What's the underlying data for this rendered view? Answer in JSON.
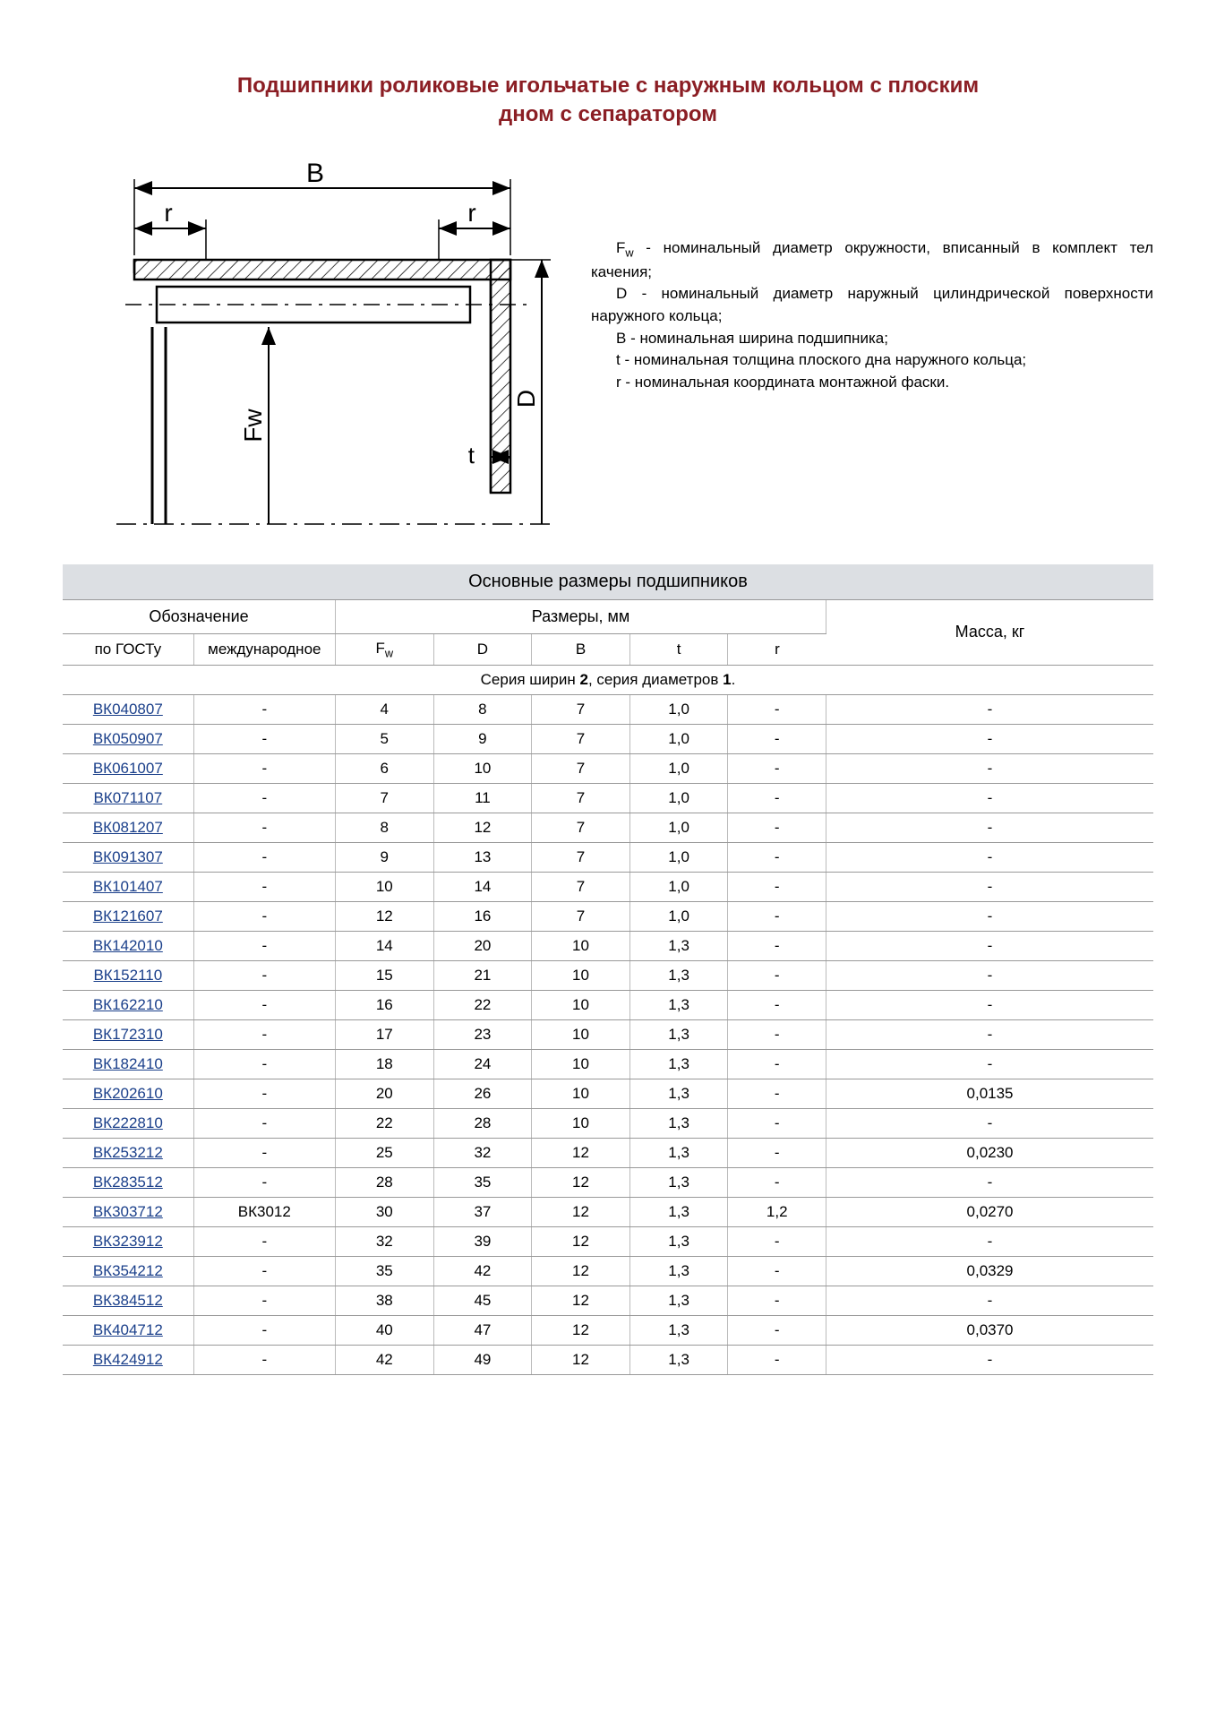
{
  "title_line1": "Подшипники роликовые игольчатые с наружным кольцом с плоским",
  "title_line2": "дном с сепаратором",
  "diagram": {
    "labels": {
      "B": "B",
      "r_left": "r",
      "r_right": "r",
      "Fw": "Fw",
      "D": "D",
      "t": "t"
    },
    "colors": {
      "stroke": "#000000",
      "hatch": "#000000",
      "dash": "#000000",
      "bg": "#ffffff"
    },
    "font_family": "Verdana, sans-serif",
    "label_fontsize": 28
  },
  "definitions": [
    {
      "symbol": "Fw",
      "symbol_html": "F<sub>w</sub>",
      "text": "- номинальный диаметр окружности, вписанный в комплект тел качения;"
    },
    {
      "symbol": "D",
      "symbol_html": "D",
      "text": "- номинальный диаметр наружный цилиндрической поверхности наружного кольца;"
    },
    {
      "symbol": "B",
      "symbol_html": "B",
      "text": "- номинальная ширина подшипника;"
    },
    {
      "symbol": "t",
      "symbol_html": "t",
      "text": "- номинальная толщина плоского дна наружного кольца;"
    },
    {
      "symbol": "r",
      "symbol_html": "r",
      "text": "- номинальная координата монтажной фаски."
    }
  ],
  "table": {
    "caption": "Основные размеры подшипников",
    "header_groups": {
      "designation": "Обозначение",
      "dimensions": "Размеры, мм",
      "mass": "Масса, кг"
    },
    "header_cols": {
      "gost": "по ГОСТу",
      "intl": "международное",
      "Fw": "Fw",
      "D": "D",
      "B": "B",
      "t": "t",
      "r": "r"
    },
    "series_label_prefix": "Серия ширин ",
    "series_bold_1": "2",
    "series_mid": ", серия диаметров ",
    "series_bold_2": "1",
    "series_suffix": ".",
    "col_widths_pct": [
      12,
      13,
      9,
      9,
      9,
      9,
      9,
      30
    ],
    "colors": {
      "caption_bg": "#dcdfe3",
      "border": "#999999",
      "border_light": "#bbbbbb",
      "link": "#1a3f8a"
    },
    "rows": [
      {
        "gost": "ВК040807",
        "intl": "-",
        "Fw": "4",
        "D": "8",
        "B": "7",
        "t": "1,0",
        "r": "-",
        "mass": "-"
      },
      {
        "gost": "ВК050907",
        "intl": "-",
        "Fw": "5",
        "D": "9",
        "B": "7",
        "t": "1,0",
        "r": "-",
        "mass": "-"
      },
      {
        "gost": "ВК061007",
        "intl": "-",
        "Fw": "6",
        "D": "10",
        "B": "7",
        "t": "1,0",
        "r": "-",
        "mass": "-"
      },
      {
        "gost": "ВК071107",
        "intl": "-",
        "Fw": "7",
        "D": "11",
        "B": "7",
        "t": "1,0",
        "r": "-",
        "mass": "-"
      },
      {
        "gost": "ВК081207",
        "intl": "-",
        "Fw": "8",
        "D": "12",
        "B": "7",
        "t": "1,0",
        "r": "-",
        "mass": "-"
      },
      {
        "gost": "ВК091307",
        "intl": "-",
        "Fw": "9",
        "D": "13",
        "B": "7",
        "t": "1,0",
        "r": "-",
        "mass": "-"
      },
      {
        "gost": "ВК101407",
        "intl": "-",
        "Fw": "10",
        "D": "14",
        "B": "7",
        "t": "1,0",
        "r": "-",
        "mass": "-"
      },
      {
        "gost": "ВК121607",
        "intl": "-",
        "Fw": "12",
        "D": "16",
        "B": "7",
        "t": "1,0",
        "r": "-",
        "mass": "-"
      },
      {
        "gost": "ВК142010",
        "intl": "-",
        "Fw": "14",
        "D": "20",
        "B": "10",
        "t": "1,3",
        "r": "-",
        "mass": "-"
      },
      {
        "gost": "ВК152110",
        "intl": "-",
        "Fw": "15",
        "D": "21",
        "B": "10",
        "t": "1,3",
        "r": "-",
        "mass": "-"
      },
      {
        "gost": "ВК162210",
        "intl": "-",
        "Fw": "16",
        "D": "22",
        "B": "10",
        "t": "1,3",
        "r": "-",
        "mass": "-"
      },
      {
        "gost": "ВК172310",
        "intl": "-",
        "Fw": "17",
        "D": "23",
        "B": "10",
        "t": "1,3",
        "r": "-",
        "mass": "-"
      },
      {
        "gost": "ВК182410",
        "intl": "-",
        "Fw": "18",
        "D": "24",
        "B": "10",
        "t": "1,3",
        "r": "-",
        "mass": "-"
      },
      {
        "gost": "ВК202610",
        "intl": "-",
        "Fw": "20",
        "D": "26",
        "B": "10",
        "t": "1,3",
        "r": "-",
        "mass": "0,0135"
      },
      {
        "gost": "ВК222810",
        "intl": "-",
        "Fw": "22",
        "D": "28",
        "B": "10",
        "t": "1,3",
        "r": "-",
        "mass": "-"
      },
      {
        "gost": "ВК253212",
        "intl": "-",
        "Fw": "25",
        "D": "32",
        "B": "12",
        "t": "1,3",
        "r": "-",
        "mass": "0,0230"
      },
      {
        "gost": "ВК283512",
        "intl": "-",
        "Fw": "28",
        "D": "35",
        "B": "12",
        "t": "1,3",
        "r": "-",
        "mass": "-"
      },
      {
        "gost": "ВК303712",
        "intl": "ВК3012",
        "Fw": "30",
        "D": "37",
        "B": "12",
        "t": "1,3",
        "r": "1,2",
        "mass": "0,0270"
      },
      {
        "gost": "ВК323912",
        "intl": "-",
        "Fw": "32",
        "D": "39",
        "B": "12",
        "t": "1,3",
        "r": "-",
        "mass": "-"
      },
      {
        "gost": "ВК354212",
        "intl": "-",
        "Fw": "35",
        "D": "42",
        "B": "12",
        "t": "1,3",
        "r": "-",
        "mass": "0,0329"
      },
      {
        "gost": "ВК384512",
        "intl": "-",
        "Fw": "38",
        "D": "45",
        "B": "12",
        "t": "1,3",
        "r": "-",
        "mass": "-"
      },
      {
        "gost": "ВК404712",
        "intl": "-",
        "Fw": "40",
        "D": "47",
        "B": "12",
        "t": "1,3",
        "r": "-",
        "mass": "0,0370"
      },
      {
        "gost": "ВК424912",
        "intl": "-",
        "Fw": "42",
        "D": "49",
        "B": "12",
        "t": "1,3",
        "r": "-",
        "mass": "-"
      }
    ]
  }
}
